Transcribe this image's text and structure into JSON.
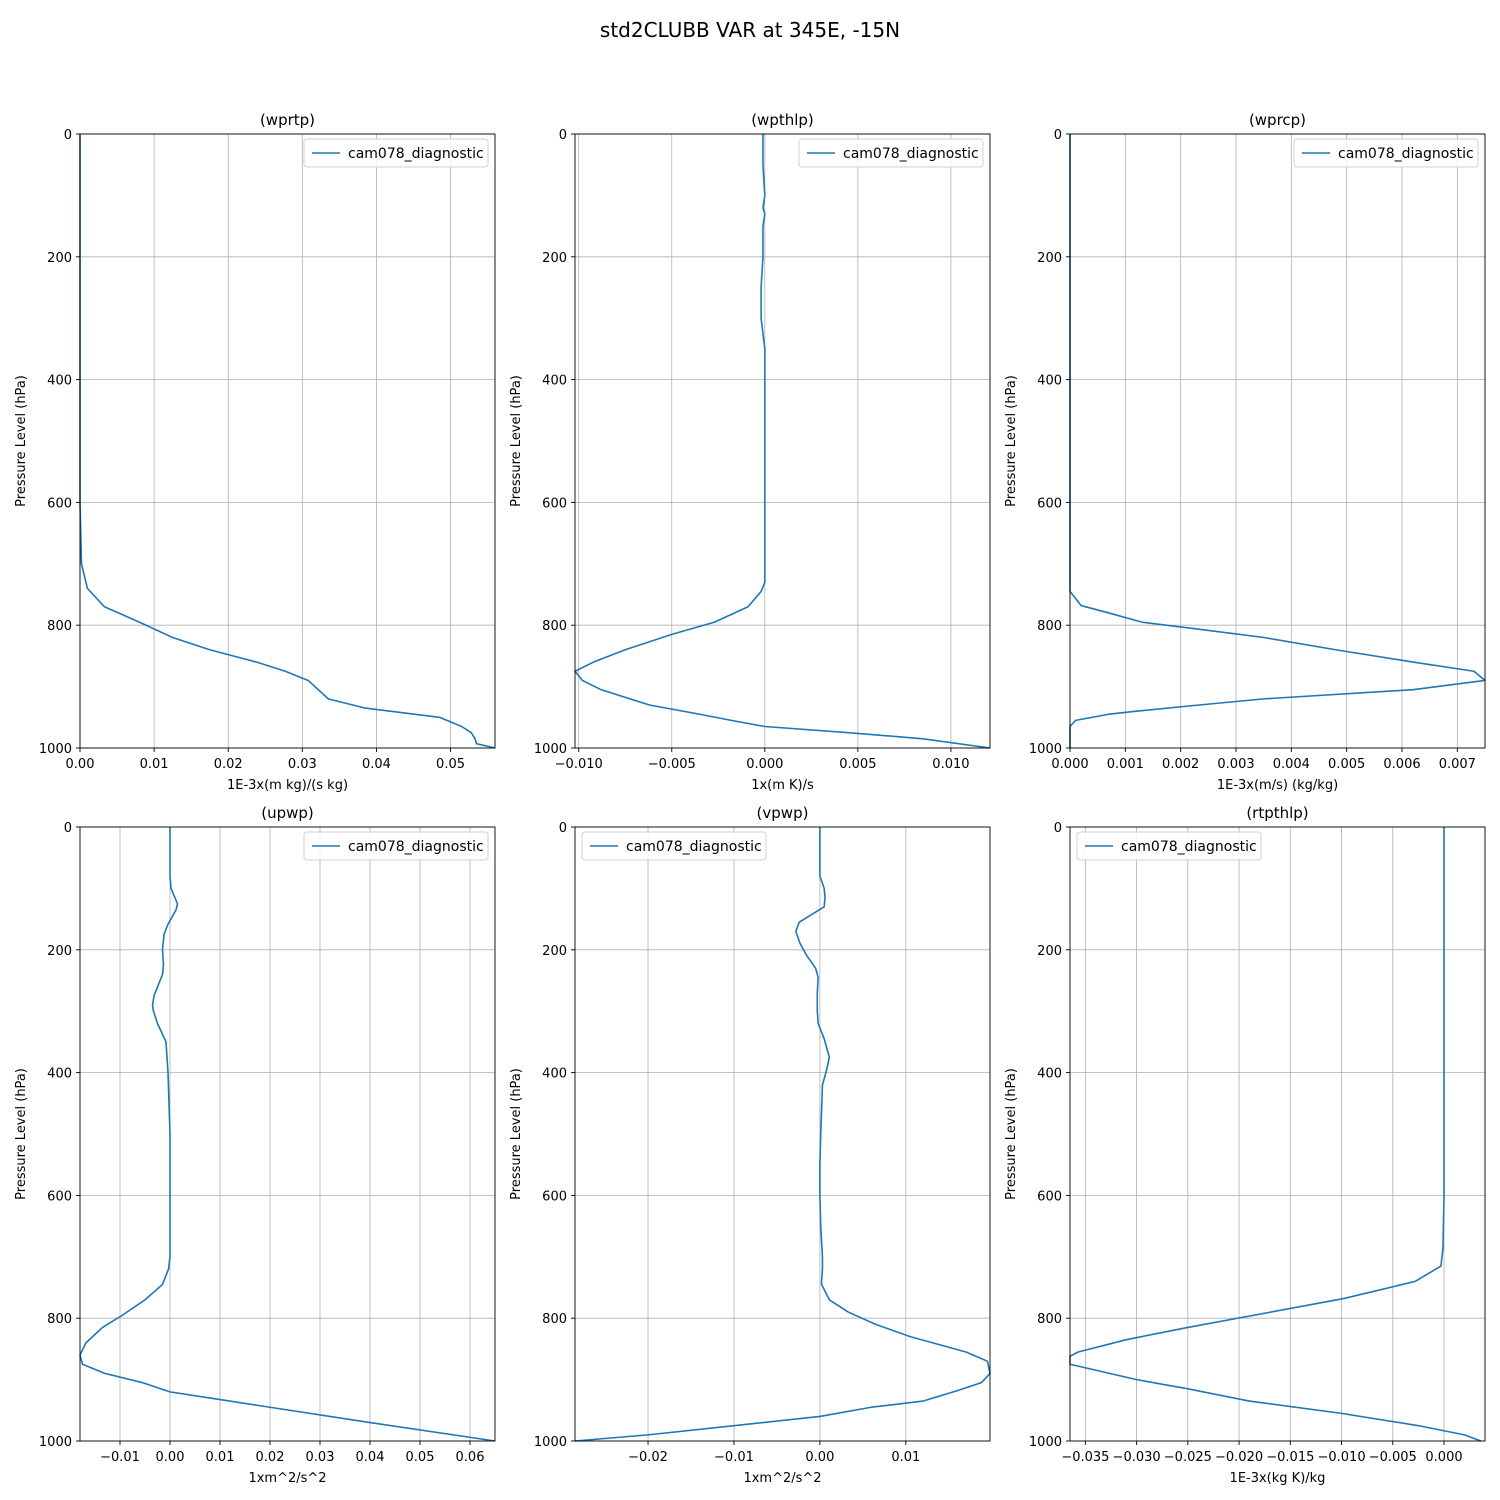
{
  "figure": {
    "title": "std2CLUBB VAR at 345E, -15N"
  },
  "chart_data": [
    {
      "type": "line",
      "title": "(wprtp)",
      "xlabel": "1E-3x(m kg)/(s kg)",
      "ylabel": "Pressure Level (hPa)",
      "xlim": [
        0.0,
        0.056
      ],
      "ylim": [
        1000,
        0
      ],
      "xticks": [
        0.0,
        0.01,
        0.02,
        0.03,
        0.04,
        0.05
      ],
      "xticklabels": [
        "0.00",
        "0.01",
        "0.02",
        "0.03",
        "0.04",
        "0.05"
      ],
      "yticks": [
        0,
        200,
        400,
        600,
        800,
        1000
      ],
      "yticklabels": [
        "0",
        "200",
        "400",
        "600",
        "800",
        "1000"
      ],
      "grid": true,
      "legend_position": "upper right",
      "series": [
        {
          "name": "cam078_diagnostic",
          "color": "#1f77b4",
          "x": [
            0.0,
            0.0,
            0.0,
            0.0,
            0.0,
            0.0,
            0.0,
            0.0002,
            0.001,
            0.0033,
            0.008,
            0.0125,
            0.0175,
            0.0238,
            0.0277,
            0.0308,
            0.0335,
            0.0385,
            0.0485,
            0.0515,
            0.0528,
            0.0533,
            0.0535,
            0.056
          ],
          "y": [
            0,
            100,
            200,
            300,
            400,
            500,
            600,
            700,
            740,
            770,
            795,
            820,
            840,
            860,
            875,
            890,
            920,
            935,
            950,
            965,
            975,
            985,
            993,
            1000
          ]
        }
      ]
    },
    {
      "type": "line",
      "title": "(wpthlp)",
      "xlabel": "1x(m K)/s",
      "ylabel": "Pressure Level (hPa)",
      "xlim": [
        -0.0102,
        0.0121
      ],
      "ylim": [
        1000,
        0
      ],
      "xticks": [
        -0.01,
        -0.005,
        0.0,
        0.005,
        0.01
      ],
      "xticklabels": [
        "−0.010",
        "−0.005",
        "0.000",
        "0.005",
        "0.010"
      ],
      "yticks": [
        0,
        200,
        400,
        600,
        800,
        1000
      ],
      "yticklabels": [
        "0",
        "200",
        "400",
        "600",
        "800",
        "1000"
      ],
      "grid": true,
      "legend_position": "upper right",
      "series": [
        {
          "name": "cam078_diagnostic",
          "color": "#1f77b4",
          "x": [
            -0.0001,
            -0.0001,
            0.0,
            -0.0001,
            0.0,
            -0.0001,
            -0.0001,
            -0.0002,
            -0.0002,
            0.0,
            0.0,
            0.0,
            0.0,
            0.0,
            0.0,
            0.0,
            -0.0002,
            -0.0009,
            -0.0027,
            -0.005,
            -0.0075,
            -0.0092,
            -0.0102,
            -0.0098,
            -0.0088,
            -0.0062,
            -0.0035,
            -0.0018,
            0.0,
            0.0045,
            0.0085,
            0.0121
          ],
          "y": [
            0,
            50,
            100,
            120,
            130,
            150,
            200,
            250,
            300,
            350,
            400,
            500,
            600,
            700,
            720,
            730,
            745,
            770,
            795,
            815,
            840,
            860,
            875,
            890,
            905,
            930,
            945,
            955,
            965,
            975,
            985,
            1000
          ]
        }
      ]
    },
    {
      "type": "line",
      "title": "(wprcp)",
      "xlabel": "1E-3x(m/s) (kg/kg)",
      "ylabel": "Pressure Level (hPa)",
      "xlim": [
        0.0,
        0.0075
      ],
      "ylim": [
        1000,
        0
      ],
      "xticks": [
        0.0,
        0.001,
        0.002,
        0.003,
        0.004,
        0.005,
        0.006,
        0.007
      ],
      "xticklabels": [
        "0.000",
        "0.001",
        "0.002",
        "0.003",
        "0.004",
        "0.005",
        "0.006",
        "0.007"
      ],
      "yticks": [
        0,
        200,
        400,
        600,
        800,
        1000
      ],
      "yticklabels": [
        "0",
        "200",
        "400",
        "600",
        "800",
        "1000"
      ],
      "grid": true,
      "legend_position": "upper right",
      "series": [
        {
          "name": "cam078_diagnostic",
          "color": "#1f77b4",
          "x": [
            0.0,
            0.0,
            0.0,
            0.0,
            0.0,
            0.0,
            0.0,
            0.0,
            0.0,
            0.0002,
            0.0007,
            0.0013,
            0.0022,
            0.0035,
            0.0048,
            0.0062,
            0.0073,
            0.0075,
            0.0062,
            0.0035,
            0.0021,
            0.0012,
            0.0007,
            0.0001,
            0.0,
            0.0
          ],
          "y": [
            0,
            100,
            200,
            300,
            400,
            500,
            600,
            700,
            745,
            768,
            780,
            795,
            805,
            820,
            840,
            860,
            875,
            890,
            905,
            920,
            932,
            940,
            945,
            955,
            965,
            1000
          ]
        }
      ]
    },
    {
      "type": "line",
      "title": "(upwp)",
      "xlabel": "1xm^2/s^2",
      "ylabel": "Pressure Level (hPa)",
      "xlim": [
        -0.018,
        0.065
      ],
      "ylim": [
        1000,
        0
      ],
      "xticks": [
        -0.01,
        0.0,
        0.01,
        0.02,
        0.03,
        0.04,
        0.05,
        0.06
      ],
      "xticklabels": [
        "−0.01",
        "0.00",
        "0.01",
        "0.02",
        "0.03",
        "0.04",
        "0.05",
        "0.06"
      ],
      "yticks": [
        0,
        200,
        400,
        600,
        800,
        1000
      ],
      "yticklabels": [
        "0",
        "200",
        "400",
        "600",
        "800",
        "1000"
      ],
      "grid": true,
      "legend_position": "upper right",
      "series": [
        {
          "name": "cam078_diagnostic",
          "color": "#1f77b4",
          "x": [
            0.0,
            0.0,
            0.0,
            0.0002,
            0.0015,
            0.0012,
            -0.0005,
            -0.0012,
            -0.0015,
            -0.0013,
            -0.0015,
            -0.0032,
            -0.0035,
            -0.0033,
            -0.0025,
            -0.0008,
            -0.0006,
            -0.0004,
            -0.0002,
            0.0,
            0.0,
            0.0,
            0.0,
            0.0,
            -0.0003,
            -0.0015,
            -0.005,
            -0.0095,
            -0.0135,
            -0.0168,
            -0.018,
            -0.0175,
            -0.013,
            -0.0055,
            0.0,
            0.02,
            0.04,
            0.065
          ],
          "y": [
            0,
            50,
            80,
            100,
            125,
            135,
            160,
            175,
            200,
            225,
            240,
            275,
            290,
            300,
            320,
            350,
            375,
            400,
            450,
            500,
            550,
            600,
            650,
            700,
            720,
            745,
            770,
            795,
            815,
            840,
            860,
            875,
            890,
            905,
            920,
            945,
            970,
            1000
          ]
        }
      ]
    },
    {
      "type": "line",
      "title": "(vpwp)",
      "xlabel": "1xm^2/s^2",
      "ylabel": "Pressure Level (hPa)",
      "xlim": [
        -0.0285,
        0.0198
      ],
      "ylim": [
        1000,
        0
      ],
      "xticks": [
        -0.02,
        -0.01,
        0.0,
        0.01
      ],
      "xticklabels": [
        "−0.02",
        "−0.01",
        "0.00",
        "0.01"
      ],
      "yticks": [
        0,
        200,
        400,
        600,
        800,
        1000
      ],
      "yticklabels": [
        "0",
        "200",
        "400",
        "600",
        "800",
        "1000"
      ],
      "grid": true,
      "legend_position": "upper left",
      "series": [
        {
          "name": "cam078_diagnostic",
          "color": "#1f77b4",
          "x": [
            0.0,
            0.0,
            0.0,
            0.0005,
            0.0006,
            0.0005,
            -0.0024,
            -0.0028,
            -0.0023,
            -0.0015,
            -0.0005,
            -0.0002,
            -0.0003,
            -0.0003,
            -0.0002,
            0.0005,
            0.0011,
            0.0008,
            0.0003,
            0.0002,
            0.0001,
            0.0,
            0.0,
            0.0001,
            0.0003,
            0.0003,
            0.0002,
            0.0002,
            0.0011,
            0.0033,
            0.0065,
            0.0105,
            0.017,
            0.0195,
            0.0198,
            0.0188,
            0.016,
            0.012,
            0.006,
            0.0,
            -0.01,
            -0.02,
            -0.0285
          ],
          "y": [
            0,
            50,
            80,
            100,
            115,
            130,
            155,
            170,
            190,
            210,
            230,
            245,
            270,
            300,
            320,
            345,
            375,
            395,
            420,
            460,
            500,
            550,
            600,
            650,
            700,
            720,
            740,
            745,
            770,
            790,
            810,
            830,
            855,
            870,
            890,
            905,
            918,
            935,
            945,
            960,
            975,
            990,
            1000
          ]
        }
      ]
    },
    {
      "type": "line",
      "title": "(rtpthlp)",
      "xlabel": "1E-3x(kg K)/kg",
      "ylabel": "Pressure Level (hPa)",
      "xlim": [
        -0.0365,
        0.004
      ],
      "ylim": [
        1000,
        0
      ],
      "xticks": [
        -0.035,
        -0.03,
        -0.025,
        -0.02,
        -0.015,
        -0.01,
        -0.005,
        0.0
      ],
      "xticklabels": [
        "−0.035",
        "−0.030",
        "−0.025",
        "−0.020",
        "−0.015",
        "−0.010",
        "−0.005",
        "0.000"
      ],
      "yticks": [
        0,
        200,
        400,
        600,
        800,
        1000
      ],
      "yticklabels": [
        "0",
        "200",
        "400",
        "600",
        "800",
        "1000"
      ],
      "grid": true,
      "legend_position": "upper left",
      "series": [
        {
          "name": "cam078_diagnostic",
          "color": "#1f77b4",
          "x": [
            0.0,
            0.0,
            0.0,
            0.0,
            -0.0001,
            -0.0003,
            -0.0028,
            -0.0098,
            -0.0185,
            -0.025,
            -0.031,
            -0.0357,
            -0.0365,
            -0.0365,
            -0.03,
            -0.025,
            -0.019,
            -0.01,
            -0.0025,
            0.002,
            0.0036
          ],
          "y": [
            0,
            200,
            400,
            600,
            685,
            715,
            740,
            768,
            795,
            815,
            835,
            855,
            862,
            875,
            900,
            915,
            935,
            955,
            975,
            990,
            1000
          ]
        }
      ]
    }
  ]
}
